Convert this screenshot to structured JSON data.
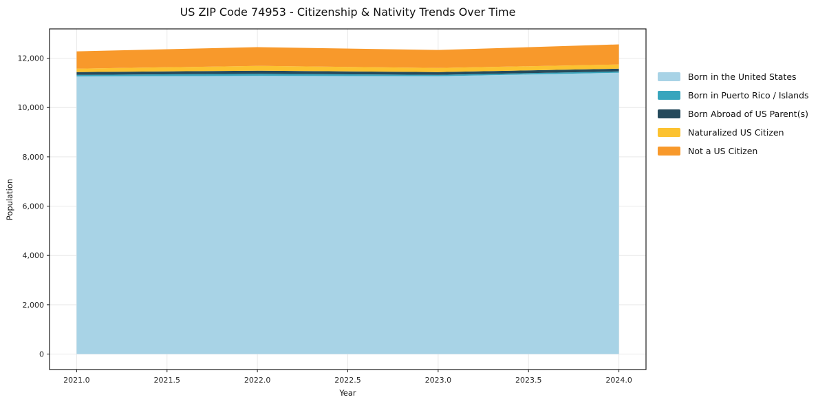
{
  "chart_data": {
    "type": "area",
    "stacked": true,
    "title": "US ZIP Code 74953 - Citizenship & Nativity Trends Over Time",
    "xlabel": "Year",
    "ylabel": "Population",
    "x": [
      2021,
      2022,
      2023,
      2024
    ],
    "series": [
      {
        "name": "Born in the United States",
        "color": "#a8d3e6",
        "values": [
          11260,
          11285,
          11270,
          11410
        ]
      },
      {
        "name": "Born in Puerto Rico / Islands",
        "color": "#38a5bd",
        "values": [
          65,
          85,
          55,
          55
        ]
      },
      {
        "name": "Born Abroad of US Parent(s)",
        "color": "#254a5c",
        "values": [
          110,
          125,
          110,
          110
        ]
      },
      {
        "name": "Naturalized US Citizen",
        "color": "#fcc230",
        "values": [
          140,
          195,
          170,
          170
        ]
      },
      {
        "name": "Not a US Citizen",
        "color": "#f8992b",
        "values": [
          705,
          760,
          730,
          815
        ]
      }
    ],
    "totals": [
      12280,
      12450,
      12335,
      12560
    ],
    "xlim": [
      2020.85,
      2024.15
    ],
    "ylim": [
      -628,
      13189
    ],
    "xticks": {
      "values": [
        2021.0,
        2021.5,
        2022.0,
        2022.5,
        2023.0,
        2023.5,
        2024.0
      ],
      "labels": [
        "2021.0",
        "2021.5",
        "2022.0",
        "2022.5",
        "2023.0",
        "2023.5",
        "2024.0"
      ]
    },
    "yticks": {
      "values": [
        0,
        2000,
        4000,
        6000,
        8000,
        10000,
        12000
      ],
      "labels": [
        "0",
        "2,000",
        "4,000",
        "6,000",
        "8,000",
        "10,000",
        "12,000"
      ]
    },
    "grid": true,
    "grid_color": "#e9e9e9",
    "spine_color": "#1a1a1a",
    "tick_label_color": "#262626",
    "legend_position": "right-outside"
  }
}
